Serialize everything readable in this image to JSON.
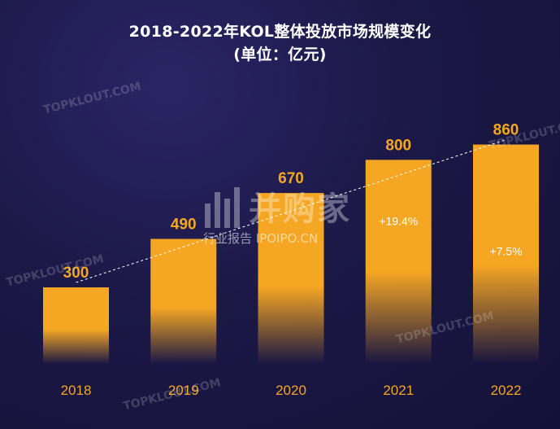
{
  "chart_data": {
    "type": "bar",
    "title": "2018-2022年KOL整体投放市场规模变化",
    "subtitle": "(单位：亿元)",
    "categories": [
      "2018",
      "2019",
      "2020",
      "2021",
      "2022"
    ],
    "values": [
      300,
      490,
      670,
      800,
      860
    ],
    "value_labels": [
      "300",
      "490",
      "670",
      "800",
      "860"
    ],
    "growth_annotations": [
      {
        "category": "2021",
        "text": "+19.4%"
      },
      {
        "category": "2022",
        "text": "+7.5%"
      }
    ],
    "trend_line": true,
    "ylim": [
      0,
      900
    ],
    "grid": false,
    "colors": {
      "bar": "#F5A623",
      "value_label": "#F5A623",
      "tick_label": "#F5A623",
      "annotation": "#FFFFFF",
      "title": "#FFFFFF",
      "background": "#1B1846"
    }
  },
  "watermarks": {
    "topklout": "TOPKLOUT.COM",
    "brand": "并购家",
    "brand_sub": "行业报告 IPOIPO.CN"
  }
}
